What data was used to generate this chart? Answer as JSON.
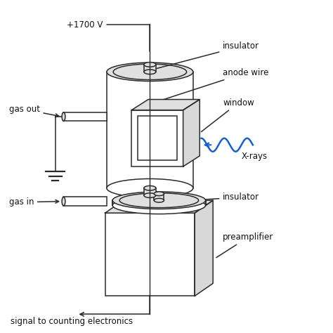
{
  "bg_color": "#ffffff",
  "line_color": "#2a2a2a",
  "fill_body": "#f0f0f0",
  "fill_top": "#e0e0e0",
  "fill_side": "#d8d8d8",
  "fill_white": "#ffffff",
  "blue_wave_color": "#1a5fc8",
  "labels": {
    "voltage": "+1700 V",
    "insulator_top": "insulator",
    "anode_wire": "anode wire",
    "gas_out": "gas out",
    "window": "window",
    "xrays": "X-rays",
    "insulator_bot": "insulator",
    "gas_in": "gas in",
    "preamplifier": "preamplifier",
    "signal": "signal to counting electronics"
  },
  "figsize": [
    4.74,
    4.74
  ],
  "dpi": 100
}
